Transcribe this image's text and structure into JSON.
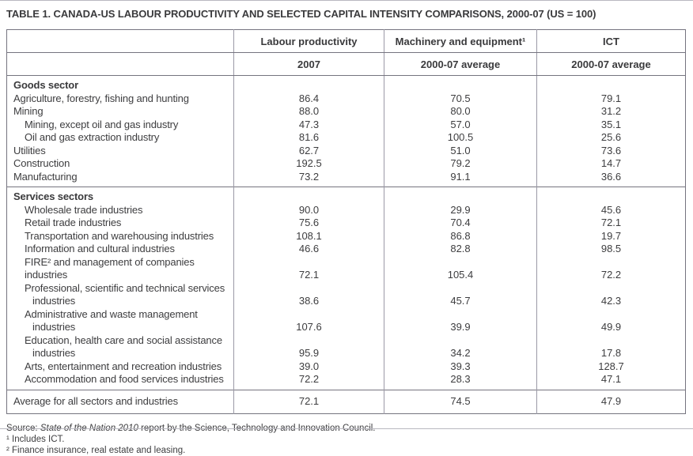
{
  "page": {
    "title": "TABLE 1. CANADA-US LABOUR PRODUCTIVITY AND SELECTED CAPITAL INTENSITY COMPARISONS, 2000-07 (US = 100)"
  },
  "table": {
    "header": {
      "cols": [
        {
          "label": "Labour productivity",
          "sub": "2007"
        },
        {
          "label": "Machinery and equipment¹",
          "sub": "2000-07 average"
        },
        {
          "label": "ICT",
          "sub": "2000-07 average"
        }
      ]
    },
    "sections": [
      {
        "header": "Goods sector",
        "rows": [
          {
            "label": "Agriculture, forestry, fishing and hunting",
            "indent": 0,
            "values": [
              "86.4",
              "70.5",
              "79.1"
            ]
          },
          {
            "label": "Mining",
            "indent": 0,
            "values": [
              "88.0",
              "80.0",
              "31.2"
            ]
          },
          {
            "label": "Mining, except oil and gas industry",
            "indent": 1,
            "values": [
              "47.3",
              "57.0",
              "35.1"
            ]
          },
          {
            "label": "Oil and gas extraction industry",
            "indent": 1,
            "values": [
              "81.6",
              "100.5",
              "25.6"
            ]
          },
          {
            "label": "Utilities",
            "indent": 0,
            "values": [
              "62.7",
              "51.0",
              "73.6"
            ]
          },
          {
            "label": "Construction",
            "indent": 0,
            "values": [
              "192.5",
              "79.2",
              "14.7"
            ]
          },
          {
            "label": "Manufacturing",
            "indent": 0,
            "values": [
              "73.2",
              "91.1",
              "36.6"
            ]
          }
        ]
      },
      {
        "header": "Services sectors",
        "rows": [
          {
            "label": "Wholesale trade industries",
            "indent": 1,
            "values": [
              "90.0",
              "29.9",
              "45.6"
            ]
          },
          {
            "label": "Retail trade industries",
            "indent": 1,
            "values": [
              "75.6",
              "70.4",
              "72.1"
            ]
          },
          {
            "label": "Transportation and warehousing industries",
            "indent": 1,
            "values": [
              "108.1",
              "86.8",
              "19.7"
            ]
          },
          {
            "label": "Information and cultural industries",
            "indent": 1,
            "values": [
              "46.6",
              "82.8",
              "98.5"
            ]
          },
          {
            "label": "FIRE² and management of companies industries",
            "indent": 1,
            "values": [
              "72.1",
              "105.4",
              "72.2"
            ]
          },
          {
            "label": "Professional, scientific and technical services\nindustries",
            "indent": 1,
            "values": [
              "38.6",
              "45.7",
              "42.3"
            ]
          },
          {
            "label": "Administrative and waste management\nindustries",
            "indent": 1,
            "values": [
              "107.6",
              "39.9",
              "49.9"
            ]
          },
          {
            "label": "Education, health care and social assistance\nindustries",
            "indent": 1,
            "values": [
              "95.9",
              "34.2",
              "17.8"
            ]
          },
          {
            "label": "Arts, entertainment and recreation industries",
            "indent": 1,
            "values": [
              "39.0",
              "39.3",
              "128.7"
            ]
          },
          {
            "label": "Accommodation and food services industries",
            "indent": 1,
            "values": [
              "72.2",
              "28.3",
              "47.1"
            ]
          }
        ]
      }
    ],
    "summary": {
      "label": "Average for all sectors and industries",
      "values": [
        "72.1",
        "74.5",
        "47.9"
      ]
    }
  },
  "footnotes": {
    "source_prefix": "Source: ",
    "source_italic": "State of the Nation 2010",
    "source_rest": " report by the Science, Technology and Innovation Council.",
    "note1": "¹ Includes ICT.",
    "note2": "² Finance insurance, real estate and leasing."
  },
  "colors": {
    "text": "#3d3d3f",
    "border_horizontal": "#75747f",
    "border_vertical": "#9b99a6",
    "page_rule": "#b9b8c0"
  }
}
